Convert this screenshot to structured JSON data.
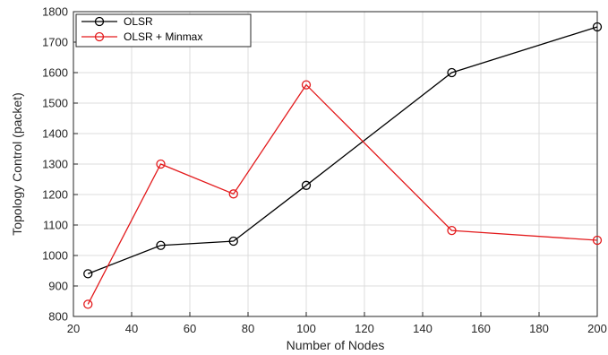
{
  "chart_data": {
    "type": "line",
    "xlabel": "Number of Nodes",
    "ylabel": "Topology Control (packet)",
    "xlim": [
      20,
      200
    ],
    "ylim": [
      800,
      1800
    ],
    "xticks": [
      20,
      40,
      60,
      80,
      100,
      120,
      140,
      160,
      180,
      200
    ],
    "yticks": [
      800,
      900,
      1000,
      1100,
      1200,
      1300,
      1400,
      1500,
      1600,
      1700,
      1800
    ],
    "grid": true,
    "legend_position": "top-left",
    "series": [
      {
        "name": "OLSR",
        "color": "#000000",
        "marker": "circle",
        "x": [
          25,
          50,
          75,
          100,
          150,
          200
        ],
        "y": [
          940,
          1033,
          1047,
          1230,
          1600,
          1750
        ]
      },
      {
        "name": "OLSR + Minmax",
        "color": "#e31a1c",
        "marker": "circle",
        "x": [
          25,
          50,
          75,
          100,
          150,
          200
        ],
        "y": [
          840,
          1300,
          1202,
          1560,
          1082,
          1050
        ]
      }
    ]
  }
}
